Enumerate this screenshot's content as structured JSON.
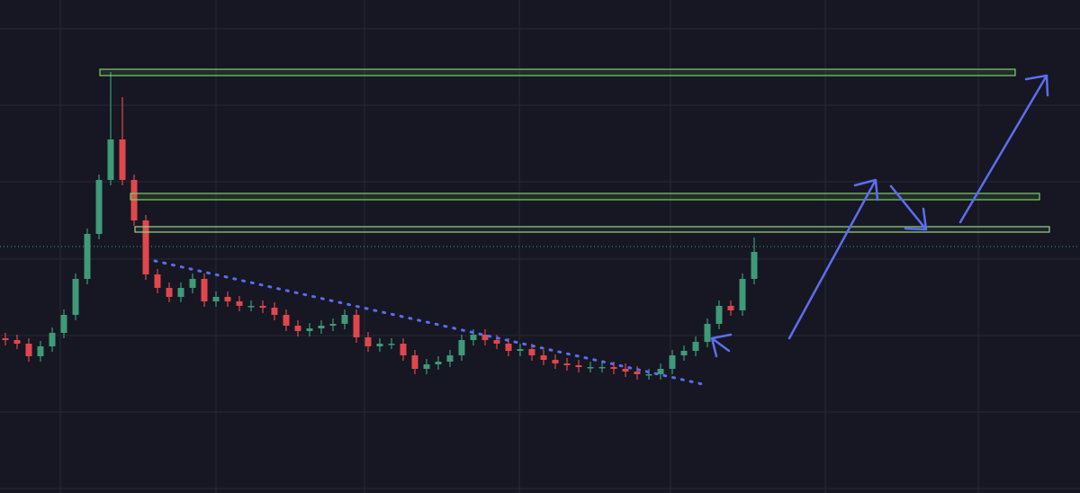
{
  "chart_data": {
    "type": "candlestick",
    "ylim": [
      0,
      548
    ],
    "up_color": "#3f9a78",
    "down_color": "#e0474c",
    "open": [
      172,
      170,
      166,
      152,
      163,
      178,
      198,
      238,
      288,
      348,
      393,
      348,
      303,
      243,
      228,
      218,
      228,
      238,
      213,
      218,
      213,
      208,
      208,
      206,
      198,
      186,
      180,
      183,
      186,
      188,
      198,
      173,
      163,
      166,
      166,
      153,
      138,
      143,
      146,
      153,
      170,
      176,
      170,
      166,
      158,
      160,
      153,
      148,
      144,
      142,
      140,
      140,
      140,
      138,
      135,
      132,
      132,
      138,
      153,
      158,
      168,
      188,
      208,
      203,
      238
    ],
    "high": [
      178,
      176,
      172,
      169,
      184,
      204,
      244,
      294,
      354,
      468,
      440,
      354,
      309,
      249,
      234,
      234,
      244,
      244,
      224,
      224,
      219,
      214,
      214,
      212,
      204,
      192,
      189,
      192,
      194,
      204,
      204,
      179,
      172,
      172,
      172,
      159,
      149,
      152,
      159,
      176,
      182,
      182,
      176,
      172,
      166,
      166,
      159,
      154,
      150,
      148,
      146,
      146,
      146,
      144,
      141,
      138,
      144,
      159,
      164,
      174,
      194,
      214,
      214,
      244,
      284
    ],
    "low": [
      164,
      160,
      146,
      146,
      157,
      172,
      192,
      232,
      282,
      342,
      342,
      297,
      237,
      222,
      212,
      212,
      222,
      207,
      207,
      207,
      202,
      202,
      200,
      192,
      180,
      174,
      174,
      177,
      180,
      182,
      167,
      157,
      157,
      160,
      147,
      132,
      132,
      137,
      140,
      147,
      164,
      164,
      160,
      152,
      152,
      147,
      142,
      138,
      136,
      134,
      134,
      134,
      132,
      129,
      126,
      126,
      126,
      132,
      147,
      152,
      162,
      182,
      197,
      197,
      232
    ],
    "close": [
      170,
      166,
      152,
      163,
      178,
      198,
      238,
      288,
      348,
      393,
      348,
      303,
      243,
      228,
      218,
      228,
      238,
      213,
      218,
      213,
      208,
      208,
      206,
      198,
      186,
      180,
      183,
      186,
      188,
      198,
      173,
      163,
      166,
      166,
      153,
      138,
      143,
      146,
      153,
      170,
      176,
      170,
      166,
      158,
      160,
      153,
      148,
      144,
      142,
      140,
      140,
      140,
      138,
      135,
      132,
      132,
      138,
      153,
      158,
      168,
      188,
      208,
      203,
      238,
      268
    ]
  }
}
